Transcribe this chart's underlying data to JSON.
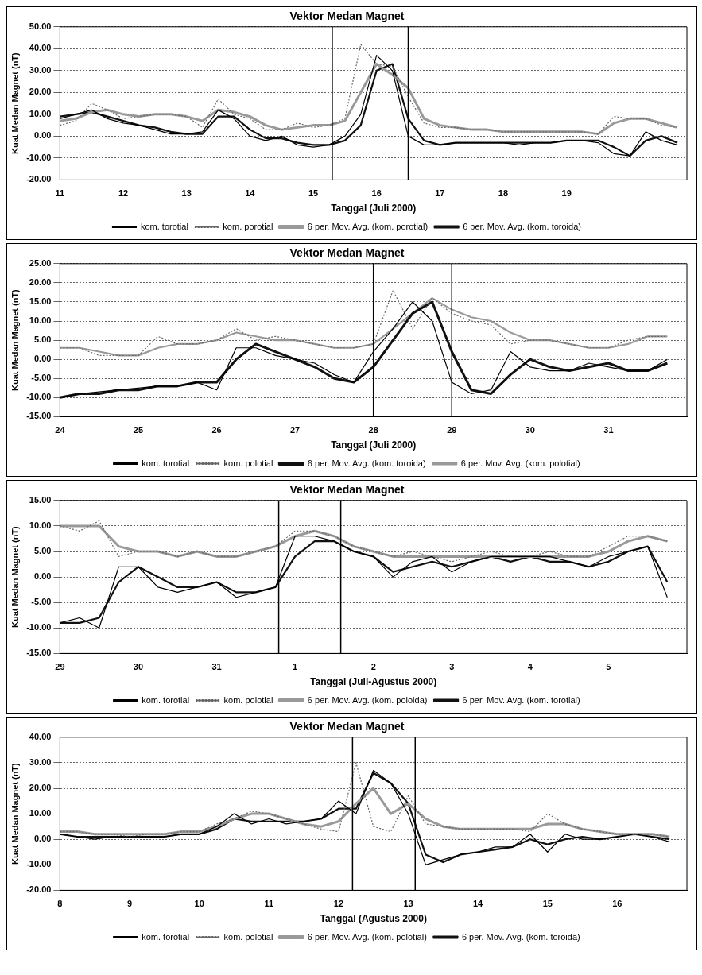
{
  "chart_data": [
    {
      "type": "line",
      "title": "Vektor Medan Magnet",
      "xlabel": "Tanggal (Juli 2000)",
      "ylabel": "Kuat Medan Magnet (nT)",
      "grid": "y",
      "legend": "bottom",
      "x": [
        11,
        11.25,
        11.5,
        11.75,
        12,
        12.25,
        12.5,
        12.75,
        13,
        13.25,
        13.5,
        13.75,
        14,
        14.25,
        14.5,
        14.75,
        15,
        15.25,
        15.5,
        15.75,
        16,
        16.25,
        16.5,
        16.75,
        17,
        17.25,
        17.5,
        17.75,
        18,
        18.25,
        18.5,
        18.75,
        19,
        19.25,
        19.5,
        19.75,
        20,
        20.25,
        20.5,
        20.75
      ],
      "xlim": [
        11,
        20.9
      ],
      "xticks": [
        11,
        12,
        13,
        14,
        15,
        16,
        17,
        18,
        19
      ],
      "ylim": [
        -20,
        50
      ],
      "yticks": [
        {
          "value": -20,
          "label": "-20.00"
        },
        {
          "value": -10,
          "label": "-10.00"
        },
        {
          "value": 0,
          "label": "0.00"
        },
        {
          "value": 10,
          "label": "10.00"
        },
        {
          "value": 20,
          "label": "20.00"
        },
        {
          "value": 30,
          "label": "30.00"
        },
        {
          "value": 40,
          "label": "40.00"
        },
        {
          "value": 50,
          "label": "50.00"
        }
      ],
      "ref_lines": [
        {
          "axis": "x",
          "value": 15.3
        },
        {
          "axis": "x",
          "value": 16.5
        }
      ],
      "series": [
        {
          "name": "kom. torotial",
          "color": "#000000",
          "line_style": "solid",
          "values": [
            8,
            10,
            12,
            8,
            6,
            5,
            3,
            1,
            1,
            2,
            12,
            8,
            0,
            -2,
            0,
            -4,
            -5,
            -4,
            0,
            10,
            37,
            30,
            0,
            -4,
            -4,
            -3,
            -3,
            -3,
            -3,
            -4,
            -3,
            -3,
            -2,
            -2,
            -3,
            -8,
            -9,
            2,
            -2,
            -4
          ]
        },
        {
          "name": "kom. porotial",
          "color": "#666666",
          "line_style": "dotted",
          "values": [
            5,
            7,
            15,
            12,
            8,
            9,
            10,
            10,
            9,
            4,
            17,
            10,
            8,
            3,
            3,
            6,
            4,
            5,
            8,
            42,
            33,
            32,
            18,
            6,
            4,
            4,
            3,
            3,
            2,
            2,
            2,
            2,
            2,
            2,
            1,
            9,
            8,
            8,
            5,
            4
          ]
        },
        {
          "name": "6 per. Mov. Avg. (kom. porotial)",
          "color": "#999999",
          "line_style": "solid",
          "values": [
            7,
            8,
            11,
            12,
            10,
            9,
            10,
            10,
            9,
            7,
            12,
            11,
            9,
            5,
            3,
            4,
            5,
            5,
            7,
            20,
            33,
            28,
            22,
            8,
            5,
            4,
            3,
            3,
            2,
            2,
            2,
            2,
            2,
            2,
            1,
            6,
            8,
            8,
            6,
            4
          ]
        },
        {
          "name": "6 per. Mov. Avg. (kom. toroida)",
          "color": "#111111",
          "line_style": "solid",
          "values": [
            9,
            10,
            11,
            9,
            7,
            5,
            4,
            2,
            1,
            1,
            9,
            9,
            3,
            -1,
            -1,
            -3,
            -4,
            -4,
            -2,
            5,
            30,
            33,
            8,
            -2,
            -4,
            -3,
            -3,
            -3,
            -3,
            -3,
            -3,
            -3,
            -2,
            -2,
            -2,
            -5,
            -9,
            -2,
            0,
            -3
          ]
        }
      ]
    },
    {
      "type": "line",
      "title": "Vektor Medan Magnet",
      "xlabel": "Tanggal (Juli 2000)",
      "ylabel": "Kuat Medan Magnet (nT)",
      "grid": "y",
      "legend": "bottom",
      "x": [
        24,
        24.25,
        24.5,
        24.75,
        25,
        25.25,
        25.5,
        25.75,
        26,
        26.25,
        26.5,
        26.75,
        27,
        27.25,
        27.5,
        27.75,
        28,
        28.25,
        28.5,
        28.75,
        29,
        29.25,
        29.5,
        29.75,
        30,
        30.25,
        30.5,
        30.75,
        31,
        31.25,
        31.5,
        31.75
      ],
      "xlim": [
        24,
        32
      ],
      "xticks": [
        24,
        25,
        26,
        27,
        28,
        29,
        30,
        31
      ],
      "ylim": [
        -15,
        25
      ],
      "yticks": [
        {
          "value": -15,
          "label": "-15.00"
        },
        {
          "value": -10,
          "label": "-10.00"
        },
        {
          "value": -5,
          "label": "-5.00"
        },
        {
          "value": 0,
          "label": "0.00"
        },
        {
          "value": 5,
          "label": "5.00"
        },
        {
          "value": 10,
          "label": "10.00"
        },
        {
          "value": 15,
          "label": "15.00"
        },
        {
          "value": 20,
          "label": "20.00"
        },
        {
          "value": 25,
          "label": "25.00"
        }
      ],
      "ref_lines": [
        {
          "axis": "x",
          "value": 28
        },
        {
          "axis": "x",
          "value": 29
        }
      ],
      "series": [
        {
          "name": "kom. torotial",
          "color": "#000000",
          "line_style": "solid",
          "values": [
            -10,
            -9,
            -8.5,
            -8,
            -7.5,
            -7,
            -7,
            -6,
            -8,
            3,
            3,
            1,
            0,
            -1,
            -4,
            -6,
            2,
            8,
            15,
            10,
            -6,
            -9,
            -8,
            2,
            -2,
            -3,
            -3,
            -1,
            -2,
            -3,
            -3,
            0
          ]
        },
        {
          "name": "kom. polotial",
          "color": "#666666",
          "line_style": "dotted",
          "values": [
            3,
            3,
            1,
            1,
            1,
            6,
            4,
            4,
            5,
            8,
            5,
            6,
            5,
            4,
            3,
            3,
            4,
            18,
            8,
            16,
            12,
            10,
            9,
            4,
            5,
            5,
            4,
            3,
            3,
            5,
            6,
            6
          ]
        },
        {
          "name": "6 per. Mov. Avg. (kom. toroida)",
          "color": "#111111",
          "line_style": "solid",
          "values": [
            -10,
            -9,
            -9,
            -8,
            -8,
            -7,
            -7,
            -6,
            -6,
            0,
            4,
            2,
            0,
            -2,
            -5,
            -6,
            -2,
            5,
            12,
            15,
            2,
            -8,
            -9,
            -4,
            0,
            -2,
            -3,
            -2,
            -1,
            -3,
            -3,
            -1
          ]
        },
        {
          "name": "6 per. Mov. Avg. (kom. polotial)",
          "color": "#999999",
          "line_style": "solid",
          "values": [
            3,
            3,
            2,
            1,
            1,
            3,
            4,
            4,
            5,
            7,
            6,
            5,
            5,
            4,
            3,
            3,
            4,
            8,
            12,
            16,
            13,
            11,
            10,
            7,
            5,
            5,
            4,
            3,
            3,
            4,
            6,
            6
          ]
        }
      ]
    },
    {
      "type": "line",
      "title": "Vektor Medan Magnet",
      "xlabel": "Tanggal (Juli-Agustus 2000)",
      "ylabel": "Kuat Medan Magnet (nT)",
      "grid": "y",
      "legend": "bottom",
      "x": [
        "2000-07-29T00:00",
        "2000-07-29T06:00",
        "2000-07-29T12:00",
        "2000-07-29T18:00",
        "2000-07-30T00:00",
        "2000-07-30T06:00",
        "2000-07-30T12:00",
        "2000-07-30T18:00",
        "2000-07-31T00:00",
        "2000-07-31T06:00",
        "2000-07-31T12:00",
        "2000-07-31T18:00",
        "2000-08-01T00:00",
        "2000-08-01T06:00",
        "2000-08-01T12:00",
        "2000-08-01T18:00",
        "2000-08-02T00:00",
        "2000-08-02T06:00",
        "2000-08-02T12:00",
        "2000-08-02T18:00",
        "2000-08-03T00:00",
        "2000-08-03T06:00",
        "2000-08-03T12:00",
        "2000-08-03T18:00",
        "2000-08-04T00:00",
        "2000-08-04T06:00",
        "2000-08-04T12:00",
        "2000-08-04T18:00",
        "2000-08-05T00:00",
        "2000-08-05T06:00",
        "2000-08-05T12:00",
        "2000-08-05T18:00"
      ],
      "xlim": [
        "2000-07-29",
        "2000-08-06"
      ],
      "xticks": [
        {
          "value": "2000-07-29",
          "label": "29"
        },
        {
          "value": "2000-07-30",
          "label": "30"
        },
        {
          "value": "2000-07-31",
          "label": "31"
        },
        {
          "value": "2000-08-01",
          "label": "1"
        },
        {
          "value": "2000-08-02",
          "label": "2"
        },
        {
          "value": "2000-08-03",
          "label": "3"
        },
        {
          "value": "2000-08-04",
          "label": "4"
        },
        {
          "value": "2000-08-05",
          "label": "5"
        }
      ],
      "ylim": [
        -15,
        15
      ],
      "yticks": [
        {
          "value": -15,
          "label": "-15.00"
        },
        {
          "value": -10,
          "label": "-10.00"
        },
        {
          "value": -5,
          "label": "-5.00"
        },
        {
          "value": 0,
          "label": "0.00"
        },
        {
          "value": 5,
          "label": "5.00"
        },
        {
          "value": 10,
          "label": "10.00"
        },
        {
          "value": 15,
          "label": "15.00"
        }
      ],
      "ref_lines": [
        {
          "axis": "x",
          "value": "2000-07-31T19:00"
        },
        {
          "axis": "x",
          "value": "2000-08-01T14:00"
        }
      ],
      "series": [
        {
          "name": "kom. torotial",
          "color": "#000000",
          "line_style": "solid",
          "values": [
            -9,
            -8,
            -10,
            2,
            2,
            -2,
            -3,
            -2,
            -1,
            -4,
            -3,
            -2,
            8,
            8,
            7,
            5,
            4,
            0,
            3,
            4,
            1,
            3,
            4,
            4,
            4,
            4,
            3,
            2,
            4,
            5,
            6,
            -4
          ]
        },
        {
          "name": "kom. polotial",
          "color": "#666666",
          "line_style": "dotted",
          "values": [
            10,
            9,
            11,
            4,
            5,
            5,
            4,
            5,
            4,
            4,
            5,
            6,
            9,
            9,
            8,
            6,
            5,
            4,
            5,
            4,
            3,
            4,
            5,
            4,
            4,
            5,
            4,
            4,
            6,
            8,
            8,
            7
          ]
        },
        {
          "name": "6 per. Mov. Avg. (kom. poloida)",
          "color": "#999999",
          "line_style": "solid",
          "values": [
            10,
            10,
            10,
            6,
            5,
            5,
            4,
            5,
            4,
            4,
            5,
            6,
            8,
            9,
            8,
            6,
            5,
            4,
            4,
            4,
            4,
            4,
            4,
            4,
            4,
            4,
            4,
            4,
            5,
            7,
            8,
            7
          ]
        },
        {
          "name": "6 per. Mov. Avg. (kom. torotial)",
          "color": "#111111",
          "line_style": "solid",
          "values": [
            -9,
            -9,
            -8,
            -1,
            2,
            0,
            -2,
            -2,
            -1,
            -3,
            -3,
            -2,
            4,
            7,
            7,
            5,
            4,
            1,
            2,
            3,
            2,
            3,
            4,
            3,
            4,
            3,
            3,
            2,
            3,
            5,
            6,
            -1
          ]
        }
      ]
    },
    {
      "type": "line",
      "title": "Vektor Medan Magnet",
      "xlabel": "Tanggal (Agustus 2000)",
      "ylabel": "Kuat Medan Magnet (nT)",
      "grid": "y",
      "legend": "bottom",
      "x": [
        8,
        8.25,
        8.5,
        8.75,
        9,
        9.25,
        9.5,
        9.75,
        10,
        10.25,
        10.5,
        10.75,
        11,
        11.25,
        11.5,
        11.75,
        12,
        12.25,
        12.5,
        12.75,
        13,
        13.25,
        13.5,
        13.75,
        14,
        14.25,
        14.5,
        14.75,
        15,
        15.25,
        15.5,
        15.75,
        16,
        16.25,
        16.5,
        16.75
      ],
      "xlim": [
        8,
        17
      ],
      "xticks": [
        8,
        9,
        10,
        11,
        12,
        13,
        14,
        15,
        16
      ],
      "ylim": [
        -20,
        40
      ],
      "yticks": [
        {
          "value": -20,
          "label": "-20.00"
        },
        {
          "value": -10,
          "label": "-10.00"
        },
        {
          "value": 0,
          "label": "0.00"
        },
        {
          "value": 10,
          "label": "10.00"
        },
        {
          "value": 20,
          "label": "20.00"
        },
        {
          "value": 30,
          "label": "30.00"
        },
        {
          "value": 40,
          "label": "40.00"
        }
      ],
      "ref_lines": [
        {
          "axis": "x",
          "value": 12.2
        },
        {
          "axis": "x",
          "value": 13.1
        }
      ],
      "series": [
        {
          "name": "kom. torotial",
          "color": "#000000",
          "line_style": "solid",
          "values": [
            2,
            1,
            0,
            1,
            1,
            1,
            1,
            2,
            2,
            5,
            10,
            6,
            8,
            6,
            7,
            8,
            15,
            10,
            27,
            22,
            10,
            -10,
            -8,
            -6,
            -5,
            -3,
            -3,
            2,
            -5,
            2,
            0,
            0,
            1,
            2,
            1,
            -1
          ]
        },
        {
          "name": "kom. polotial",
          "color": "#666666",
          "line_style": "dotted",
          "values": [
            3,
            3,
            2,
            2,
            1,
            2,
            2,
            3,
            3,
            6,
            8,
            11,
            10,
            8,
            6,
            4,
            3,
            30,
            5,
            3,
            17,
            6,
            5,
            4,
            4,
            4,
            4,
            3,
            10,
            6,
            4,
            3,
            2,
            2,
            2,
            1
          ]
        },
        {
          "name": "6 per. Mov. Avg. (kom. polotial)",
          "color": "#999999",
          "line_style": "solid",
          "values": [
            3,
            3,
            2,
            2,
            2,
            2,
            2,
            3,
            3,
            5,
            8,
            10,
            10,
            8,
            6,
            5,
            7,
            14,
            20,
            10,
            14,
            8,
            5,
            4,
            4,
            4,
            4,
            4,
            6,
            6,
            4,
            3,
            2,
            2,
            2,
            1
          ]
        },
        {
          "name": "6 per. Mov. Avg. (kom. toroida)",
          "color": "#111111",
          "line_style": "solid",
          "values": [
            2,
            1,
            1,
            1,
            1,
            1,
            1,
            2,
            2,
            4,
            8,
            7,
            7,
            7,
            7,
            8,
            12,
            12,
            26,
            22,
            14,
            -6,
            -9,
            -6,
            -5,
            -4,
            -3,
            0,
            -2,
            0,
            1,
            0,
            1,
            2,
            1,
            0
          ]
        }
      ]
    }
  ]
}
